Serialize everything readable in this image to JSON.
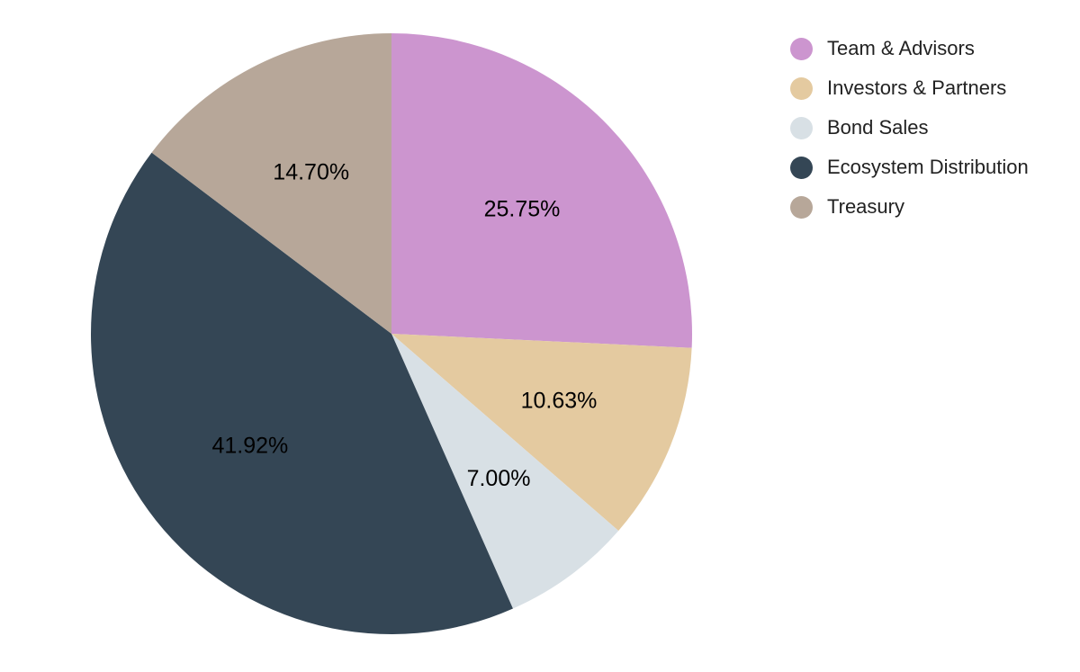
{
  "chart_data": {
    "type": "pie",
    "title": "",
    "legend_position": "top-right",
    "slices": [
      {
        "label": "Team & Advisors",
        "value": 25.75,
        "value_label": "25.75%",
        "color": "#cc95cf"
      },
      {
        "label": "Investors & Partners",
        "value": 10.63,
        "value_label": "10.63%",
        "color": "#e4caa0"
      },
      {
        "label": "Bond Sales",
        "value": 7.0,
        "value_label": "7.00%",
        "color": "#d8e0e5"
      },
      {
        "label": "Ecosystem Distribution",
        "value": 41.92,
        "value_label": "41.92%",
        "color": "#344655"
      },
      {
        "label": "Treasury",
        "value": 14.7,
        "value_label": "14.70%",
        "color": "#b7a799"
      }
    ]
  }
}
